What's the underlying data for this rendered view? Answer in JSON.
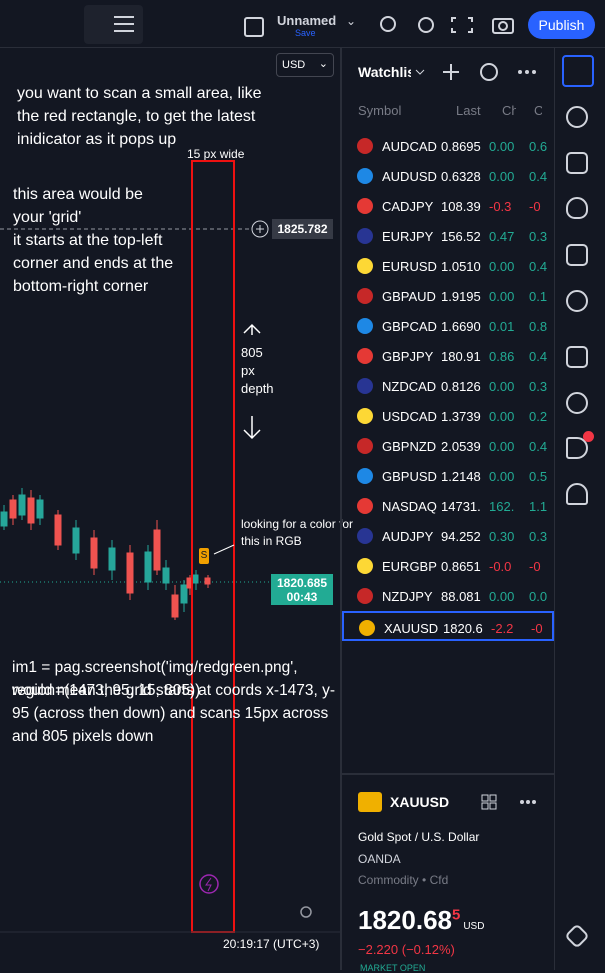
{
  "toolbar": {
    "layout_name": "Unnamed",
    "save": "Save",
    "publish": "Publish"
  },
  "chart": {
    "currency": "USD",
    "price_line_label": "1825.782",
    "last_price": "1820.685",
    "countdown": "00:43",
    "time": "20:19:17 (UTC+3)"
  },
  "annotations": {
    "intro": "you want to scan a small area, like the red rectangle, to get the latest inidicator as it pops up",
    "width_label": "15 px wide",
    "grid_text": "this area would be your 'grid'",
    "grid_text2": "it starts at the top-left corner and ends at the bottom-right corner",
    "depth": [
      "805",
      "px",
      "depth"
    ],
    "color_note": "looking for a color for this in RGB",
    "code": "im1 = pag.screenshot('img/redgreen.png', region=(1473, 95, 15, 805))",
    "explanation": "would mean the grid starts at coords x-1473, y-95 (across then down) and scans 15px across and 805 pixels down",
    "marker": "S"
  },
  "watchlist": {
    "title": "Watchlist",
    "columns": [
      "Symbol",
      "Last",
      "Chg",
      "Chg%"
    ],
    "rows": [
      [
        "AUDCAD",
        "0.8695",
        "0.00",
        "0.6"
      ],
      [
        "AUDUSD",
        "0.6328",
        "0.00",
        "0.4"
      ],
      [
        "CADJPY",
        "108.39",
        "-0.3",
        "-0"
      ],
      [
        "EURJPY",
        "156.52",
        "0.47",
        "0.3"
      ],
      [
        "EURUSD",
        "1.0510",
        "0.00",
        "0.4"
      ],
      [
        "GBPAUD",
        "1.9195",
        "0.00",
        "0.1"
      ],
      [
        "GBPCAD",
        "1.6690",
        "0.01",
        "0.8"
      ],
      [
        "GBPJPY",
        "180.91",
        "0.86",
        "0.4"
      ],
      [
        "NZDCAD",
        "0.8126",
        "0.00",
        "0.3"
      ],
      [
        "USDCAD",
        "1.3739",
        "0.00",
        "0.2"
      ],
      [
        "GBPNZD",
        "2.0539",
        "0.00",
        "0.4"
      ],
      [
        "GBPUSD",
        "1.2148",
        "0.00",
        "0.5"
      ],
      [
        "NASDAQ",
        "14731.",
        "162.",
        "1.1"
      ],
      [
        "AUDJPY",
        "94.252",
        "0.30",
        "0.3"
      ],
      [
        "EURGBP",
        "0.8651",
        "-0.0",
        "-0"
      ],
      [
        "NZDJPY",
        "88.081",
        "0.00",
        "0.0"
      ],
      [
        "XAUUSD",
        "1820.6",
        "-2.2",
        "-0"
      ]
    ]
  },
  "details": {
    "symbol": "XAUUSD",
    "name": "Gold Spot / U.S. Dollar",
    "exchange": "OANDA",
    "kind": "Commodity",
    "sub_kind": "Cfd",
    "price": "1820.68",
    "price_sup": "5",
    "currency": "USD",
    "change": "−2.220 (−0.12%)",
    "status": "MARKET OPEN"
  }
}
